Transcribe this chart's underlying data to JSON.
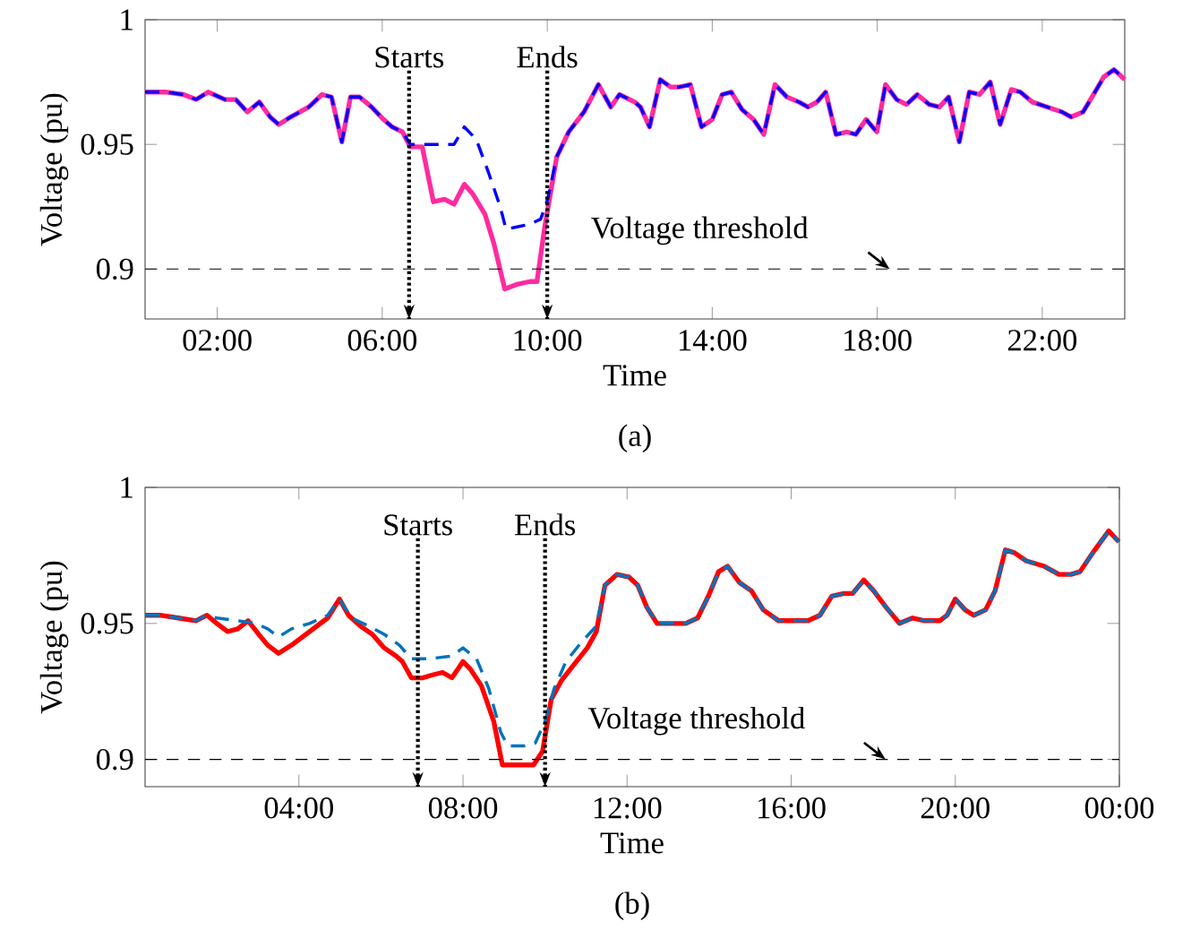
{
  "chart_data": [
    {
      "type": "line",
      "xlabel": "Time",
      "ylabel": "Voltage (pu)",
      "annotations": [
        "(a)"
      ],
      "xlim": [
        0.25,
        24
      ],
      "ylim": [
        0.88,
        1
      ],
      "xticks": [
        {
          "value": 2,
          "label": "02:00"
        },
        {
          "value": 6,
          "label": "06:00"
        },
        {
          "value": 10,
          "label": "10:00"
        },
        {
          "value": 14,
          "label": "14:00"
        },
        {
          "value": 18,
          "label": "18:00"
        },
        {
          "value": 22,
          "label": "22:00"
        }
      ],
      "yticks": [
        0.9,
        0.95,
        1
      ],
      "ref_lines": [
        {
          "axis": "y",
          "value": 0.9,
          "label": "Voltage threshold",
          "line_style": "dashed"
        },
        {
          "axis": "x",
          "value": 6.65,
          "label": "Starts",
          "line_style": "dotted"
        },
        {
          "axis": "x",
          "value": 10.0,
          "label": "Ends",
          "line_style": "dotted"
        }
      ],
      "series": [
        {
          "color": "#ff2ba0",
          "line_style": "solid",
          "x": [
            0.25,
            0.74,
            1.18,
            1.49,
            1.78,
            2.19,
            2.45,
            2.73,
            3.02,
            3.28,
            3.49,
            3.78,
            4.22,
            4.54,
            4.77,
            5.02,
            5.23,
            5.45,
            5.74,
            6.03,
            6.24,
            6.49,
            6.68,
            6.97,
            7.24,
            7.51,
            7.74,
            7.99,
            8.2,
            8.49,
            8.71,
            8.97,
            9.29,
            9.58,
            9.75,
            9.94,
            10.23,
            10.52,
            10.89,
            11.24,
            11.54,
            11.75,
            12.12,
            12.26,
            12.48,
            12.74,
            12.99,
            13.2,
            13.47,
            13.74,
            14.0,
            14.24,
            14.46,
            14.72,
            15.0,
            15.25,
            15.52,
            15.81,
            16.1,
            16.32,
            16.54,
            16.75,
            17.0,
            17.26,
            17.48,
            17.73,
            17.99,
            18.2,
            18.47,
            18.71,
            18.97,
            19.26,
            19.51,
            19.73,
            19.99,
            20.23,
            20.48,
            20.74,
            20.98,
            21.25,
            21.47,
            21.76,
            22.12,
            22.48,
            22.7,
            22.99,
            23.28,
            23.49,
            23.74,
            24.0
          ],
          "values": [
            0.971,
            0.971,
            0.97,
            0.968,
            0.971,
            0.968,
            0.968,
            0.963,
            0.967,
            0.961,
            0.958,
            0.961,
            0.965,
            0.97,
            0.969,
            0.951,
            0.969,
            0.969,
            0.965,
            0.96,
            0.957,
            0.955,
            0.949,
            0.949,
            0.927,
            0.928,
            0.926,
            0.934,
            0.93,
            0.922,
            0.91,
            0.892,
            0.894,
            0.895,
            0.895,
            0.917,
            0.945,
            0.955,
            0.963,
            0.974,
            0.965,
            0.97,
            0.967,
            0.965,
            0.957,
            0.976,
            0.973,
            0.973,
            0.974,
            0.957,
            0.96,
            0.97,
            0.971,
            0.964,
            0.96,
            0.954,
            0.974,
            0.969,
            0.967,
            0.965,
            0.967,
            0.971,
            0.954,
            0.955,
            0.954,
            0.96,
            0.955,
            0.974,
            0.968,
            0.966,
            0.97,
            0.966,
            0.965,
            0.969,
            0.951,
            0.971,
            0.97,
            0.975,
            0.958,
            0.972,
            0.971,
            0.967,
            0.965,
            0.963,
            0.961,
            0.963,
            0.971,
            0.977,
            0.98,
            0.976
          ]
        },
        {
          "color": "#0000ff",
          "line_style": "dashed",
          "x": [
            0.25,
            0.74,
            1.18,
            1.49,
            1.78,
            2.19,
            2.45,
            2.73,
            3.02,
            3.28,
            3.49,
            3.78,
            4.22,
            4.54,
            4.77,
            5.02,
            5.23,
            5.45,
            5.74,
            6.03,
            6.24,
            6.49,
            6.68,
            6.97,
            7.4,
            7.74,
            7.99,
            8.28,
            8.57,
            8.86,
            9.0,
            9.29,
            9.58,
            9.84,
            10.01,
            10.23,
            10.52,
            10.89,
            11.24,
            11.54,
            11.75,
            12.12,
            12.26,
            12.48,
            12.74,
            12.99,
            13.2,
            13.47,
            13.74,
            14.0,
            14.24,
            14.46,
            14.72,
            15.0,
            15.25,
            15.52,
            15.81,
            16.1,
            16.32,
            16.54,
            16.75,
            17.0,
            17.26,
            17.48,
            17.73,
            17.99,
            18.2,
            18.47,
            18.71,
            18.97,
            19.26,
            19.51,
            19.73,
            19.99,
            20.23,
            20.48,
            20.74,
            20.98,
            21.25,
            21.47,
            21.76,
            22.12,
            22.48,
            22.7,
            22.99,
            23.28,
            23.49,
            23.74,
            24.0
          ],
          "values": [
            0.971,
            0.971,
            0.97,
            0.968,
            0.971,
            0.968,
            0.968,
            0.963,
            0.967,
            0.961,
            0.958,
            0.961,
            0.965,
            0.97,
            0.969,
            0.951,
            0.969,
            0.969,
            0.965,
            0.96,
            0.957,
            0.955,
            0.95,
            0.95,
            0.95,
            0.95,
            0.957,
            0.952,
            0.939,
            0.925,
            0.916,
            0.917,
            0.918,
            0.92,
            0.928,
            0.945,
            0.955,
            0.963,
            0.974,
            0.965,
            0.97,
            0.967,
            0.965,
            0.957,
            0.976,
            0.973,
            0.973,
            0.974,
            0.957,
            0.96,
            0.97,
            0.971,
            0.964,
            0.96,
            0.954,
            0.974,
            0.969,
            0.967,
            0.965,
            0.967,
            0.971,
            0.954,
            0.955,
            0.954,
            0.96,
            0.955,
            0.974,
            0.968,
            0.966,
            0.97,
            0.966,
            0.965,
            0.969,
            0.951,
            0.971,
            0.97,
            0.975,
            0.958,
            0.972,
            0.971,
            0.967,
            0.965,
            0.963,
            0.961,
            0.963,
            0.971,
            0.977,
            0.98,
            0.976
          ]
        }
      ]
    },
    {
      "type": "line",
      "xlabel": "Time",
      "ylabel": "Voltage (pu)",
      "annotations": [
        "(b)"
      ],
      "xlim": [
        0.25,
        24
      ],
      "ylim": [
        0.89,
        1
      ],
      "xticks": [
        {
          "value": 4,
          "label": "04:00"
        },
        {
          "value": 8,
          "label": "08:00"
        },
        {
          "value": 12,
          "label": "12:00"
        },
        {
          "value": 16,
          "label": "16:00"
        },
        {
          "value": 20,
          "label": "20:00"
        },
        {
          "value": 24,
          "label": "00:00"
        }
      ],
      "yticks": [
        0.9,
        0.95,
        1
      ],
      "ref_lines": [
        {
          "axis": "y",
          "value": 0.9,
          "label": "Voltage threshold",
          "line_style": "dashed"
        },
        {
          "axis": "x",
          "value": 6.9,
          "label": "Starts",
          "line_style": "dotted"
        },
        {
          "axis": "x",
          "value": 10.0,
          "label": "Ends",
          "line_style": "dotted"
        }
      ],
      "series": [
        {
          "color": "#ff0000",
          "line_style": "solid",
          "x": [
            0.25,
            0.62,
            1.06,
            1.49,
            1.76,
            2.0,
            2.26,
            2.51,
            2.76,
            3.02,
            3.24,
            3.5,
            3.82,
            4.26,
            4.7,
            4.99,
            5.21,
            5.5,
            5.79,
            6.08,
            6.37,
            6.52,
            6.74,
            7.02,
            7.24,
            7.5,
            7.73,
            8.0,
            8.19,
            8.45,
            8.75,
            8.96,
            9.28,
            9.5,
            9.72,
            9.94,
            10.15,
            10.4,
            10.66,
            11.03,
            11.25,
            11.46,
            11.75,
            12.05,
            12.26,
            12.48,
            12.73,
            13.07,
            13.43,
            13.72,
            13.98,
            14.23,
            14.45,
            14.74,
            15.03,
            15.32,
            15.69,
            16.05,
            16.41,
            16.7,
            16.99,
            17.29,
            17.5,
            17.77,
            18.01,
            18.31,
            18.64,
            18.96,
            19.25,
            19.62,
            19.8,
            20.0,
            20.24,
            20.45,
            20.74,
            20.97,
            21.22,
            21.44,
            21.73,
            22.17,
            22.53,
            22.82,
            23.04,
            23.4,
            23.74,
            23.99
          ],
          "values": [
            0.953,
            0.953,
            0.952,
            0.951,
            0.953,
            0.95,
            0.947,
            0.948,
            0.951,
            0.946,
            0.942,
            0.939,
            0.942,
            0.947,
            0.952,
            0.959,
            0.953,
            0.949,
            0.946,
            0.941,
            0.938,
            0.936,
            0.93,
            0.93,
            0.931,
            0.932,
            0.93,
            0.936,
            0.933,
            0.927,
            0.914,
            0.898,
            0.898,
            0.898,
            0.898,
            0.903,
            0.922,
            0.929,
            0.934,
            0.941,
            0.947,
            0.964,
            0.968,
            0.967,
            0.964,
            0.956,
            0.95,
            0.95,
            0.95,
            0.952,
            0.96,
            0.969,
            0.971,
            0.965,
            0.962,
            0.955,
            0.951,
            0.951,
            0.951,
            0.953,
            0.96,
            0.961,
            0.961,
            0.966,
            0.962,
            0.956,
            0.95,
            0.952,
            0.951,
            0.951,
            0.953,
            0.959,
            0.955,
            0.953,
            0.955,
            0.962,
            0.977,
            0.976,
            0.973,
            0.971,
            0.968,
            0.968,
            0.969,
            0.977,
            0.984,
            0.98
          ]
        },
        {
          "color": "#0072bd",
          "line_style": "dashed",
          "x": [
            0.25,
            0.62,
            1.06,
            1.49,
            1.76,
            2.0,
            2.51,
            2.95,
            3.24,
            3.5,
            3.82,
            4.26,
            4.7,
            4.99,
            5.28,
            5.71,
            6.08,
            6.45,
            6.74,
            7.17,
            7.73,
            8.0,
            8.33,
            8.63,
            8.92,
            9.09,
            9.5,
            9.76,
            10.0,
            10.22,
            10.51,
            10.88,
            11.25,
            11.46,
            11.75,
            12.05,
            12.26,
            12.48,
            12.73,
            13.07,
            13.43,
            13.72,
            13.98,
            14.23,
            14.45,
            14.74,
            15.03,
            15.32,
            15.69,
            16.05,
            16.41,
            16.7,
            16.99,
            17.29,
            17.5,
            17.77,
            18.01,
            18.31,
            18.64,
            18.96,
            19.25,
            19.62,
            19.8,
            20.0,
            20.24,
            20.45,
            20.74,
            20.97,
            21.22,
            21.44,
            21.73,
            22.17,
            22.53,
            22.82,
            23.04,
            23.4,
            23.74,
            23.99
          ],
          "values": [
            0.953,
            0.953,
            0.952,
            0.951,
            0.953,
            0.952,
            0.951,
            0.95,
            0.948,
            0.945,
            0.948,
            0.95,
            0.953,
            0.959,
            0.952,
            0.949,
            0.946,
            0.942,
            0.937,
            0.937,
            0.938,
            0.941,
            0.937,
            0.926,
            0.91,
            0.905,
            0.905,
            0.906,
            0.914,
            0.926,
            0.936,
            0.943,
            0.949,
            0.964,
            0.968,
            0.967,
            0.964,
            0.956,
            0.95,
            0.95,
            0.95,
            0.952,
            0.96,
            0.969,
            0.971,
            0.965,
            0.962,
            0.955,
            0.951,
            0.951,
            0.951,
            0.953,
            0.96,
            0.961,
            0.961,
            0.966,
            0.962,
            0.956,
            0.95,
            0.952,
            0.951,
            0.951,
            0.953,
            0.959,
            0.955,
            0.953,
            0.955,
            0.962,
            0.977,
            0.976,
            0.973,
            0.971,
            0.968,
            0.968,
            0.969,
            0.977,
            0.984,
            0.98
          ]
        }
      ]
    }
  ]
}
